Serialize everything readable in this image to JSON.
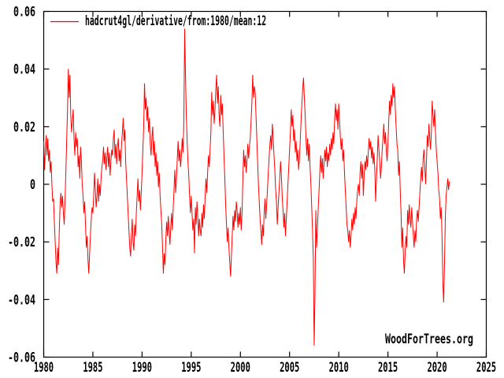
{
  "page": {
    "background": "#ffffff",
    "frame_color": "#000000"
  },
  "legend": {
    "series_label": "hadcrut4gl/derivative/from:1980/mean:12",
    "line_color": "#ff0000"
  },
  "watermark": "WoodForTrees.org",
  "chart_data": {
    "type": "line",
    "title": "",
    "xlabel": "",
    "ylabel": "",
    "grid": false,
    "legend_position": "top-left",
    "xlim": [
      1980,
      2025
    ],
    "ylim": [
      -0.06,
      0.06
    ],
    "x_ticks": {
      "values": [
        1980,
        1985,
        1990,
        1995,
        2000,
        2005,
        2010,
        2015,
        2020,
        2025
      ],
      "labels": [
        "1980",
        "1985",
        "1990",
        "1995",
        "2000",
        "2005",
        "2010",
        "2015",
        "2020",
        "2025"
      ]
    },
    "y_ticks": {
      "values": [
        0.06,
        0.04,
        0.02,
        0,
        -0.02,
        -0.04,
        -0.06
      ],
      "labels": [
        "0.06",
        "0.04",
        "0.02",
        "0",
        "-0.02",
        "-0.04",
        "-0.06"
      ]
    },
    "series": [
      {
        "name": "hadcrut4gl/derivative/from:1980/mean:12",
        "color": "#ff0000",
        "x_start": 1980.0,
        "x_step_years": 0.0833333,
        "values": [
          0.015,
          0.005,
          0.012,
          0.017,
          0.01,
          0.016,
          0.008,
          0.012,
          0.004,
          0.008,
          0.0,
          -0.006,
          -0.005,
          -0.013,
          -0.02,
          -0.027,
          -0.031,
          -0.022,
          -0.028,
          -0.016,
          -0.007,
          -0.003,
          -0.008,
          -0.004,
          -0.01,
          -0.014,
          -0.006,
          0.004,
          0.015,
          0.025,
          0.04,
          0.03,
          0.038,
          0.024,
          0.018,
          0.022,
          0.026,
          0.016,
          0.01,
          0.018,
          0.013,
          0.016,
          0.006,
          0.01,
          0.002,
          0.013,
          0.008,
          0.0,
          -0.004,
          -0.01,
          -0.006,
          -0.014,
          -0.022,
          -0.018,
          -0.026,
          -0.031,
          -0.024,
          -0.018,
          -0.012,
          -0.008,
          -0.01,
          -0.004,
          0.004,
          -0.002,
          -0.008,
          -0.004,
          0.002,
          -0.006,
          0.0,
          -0.004,
          0.002,
          0.006,
          0.008,
          0.013,
          0.007,
          0.011,
          0.005,
          0.009,
          0.013,
          0.006,
          0.011,
          0.003,
          0.008,
          0.012,
          0.01,
          0.016,
          0.019,
          0.009,
          0.014,
          0.007,
          0.013,
          0.016,
          0.008,
          0.012,
          0.006,
          0.014,
          0.018,
          0.023,
          0.015,
          0.019,
          0.008,
          0.002,
          -0.004,
          -0.01,
          -0.016,
          -0.022,
          -0.025,
          -0.018,
          -0.012,
          -0.02,
          -0.023,
          -0.014,
          -0.018,
          -0.01,
          -0.004,
          0.002,
          -0.006,
          -0.002,
          -0.009,
          -0.003,
          0.004,
          0.012,
          0.02,
          0.035,
          0.026,
          0.03,
          0.022,
          0.027,
          0.018,
          0.023,
          0.014,
          0.01,
          0.016,
          0.02,
          0.01,
          0.015,
          0.006,
          0.011,
          0.003,
          0.008,
          -0.001,
          0.004,
          -0.004,
          -0.009,
          -0.014,
          -0.022,
          -0.031,
          -0.024,
          -0.028,
          -0.019,
          -0.013,
          -0.018,
          -0.011,
          -0.016,
          -0.021,
          -0.015,
          -0.01,
          -0.016,
          -0.008,
          -0.002,
          0.005,
          -0.003,
          0.002,
          0.009,
          0.015,
          0.008,
          0.012,
          0.006,
          0.01,
          0.016,
          0.011,
          0.022,
          0.054,
          0.038,
          0.024,
          0.015,
          0.008,
          0.003,
          -0.004,
          -0.01,
          -0.004,
          -0.01,
          -0.016,
          -0.012,
          -0.024,
          -0.008,
          -0.014,
          -0.006,
          -0.011,
          -0.018,
          -0.012,
          -0.016,
          -0.018,
          -0.01,
          -0.015,
          -0.007,
          -0.012,
          -0.004,
          0.002,
          -0.003,
          0.004,
          0.01,
          0.006,
          0.012,
          0.018,
          0.032,
          0.024,
          0.029,
          0.021,
          0.026,
          0.033,
          0.038,
          0.028,
          0.034,
          0.024,
          0.02,
          0.031,
          0.024,
          0.028,
          0.018,
          0.01,
          0.002,
          -0.007,
          -0.014,
          -0.02,
          -0.015,
          -0.022,
          -0.027,
          -0.032,
          -0.025,
          -0.018,
          -0.011,
          -0.016,
          -0.009,
          -0.013,
          -0.006,
          -0.009,
          -0.015,
          -0.01,
          -0.014,
          -0.008,
          -0.016,
          -0.01,
          0.002,
          0.012,
          0.006,
          0.01,
          0.004,
          0.008,
          0.014,
          0.009,
          0.013,
          0.016,
          0.022,
          0.028,
          0.038,
          0.03,
          0.034,
          0.032,
          0.024,
          0.016,
          0.008,
          0.0,
          -0.006,
          -0.012,
          -0.016,
          -0.021,
          -0.014,
          -0.018,
          -0.01,
          -0.005,
          -0.012,
          -0.007,
          -0.002,
          0.004,
          0.009,
          0.014,
          0.017,
          0.012,
          0.021,
          0.016,
          0.01,
          0.005,
          -0.002,
          -0.006,
          -0.014,
          -0.008,
          -0.003,
          0.002,
          0.008,
          0.003,
          -0.004,
          -0.009,
          -0.015,
          -0.01,
          -0.018,
          -0.012,
          -0.006,
          0.0,
          0.006,
          0.012,
          0.018,
          0.026,
          0.02,
          0.024,
          0.015,
          0.019,
          0.011,
          0.015,
          0.008,
          0.012,
          0.005,
          0.009,
          0.015,
          0.022,
          0.028,
          0.033,
          0.037,
          0.03,
          0.024,
          0.016,
          0.01,
          0.016,
          0.008,
          0.014,
          0.006,
          0.0,
          -0.008,
          -0.016,
          -0.026,
          -0.056,
          -0.038,
          -0.009,
          -0.022,
          -0.015,
          -0.008,
          -0.002,
          0.005,
          0.01,
          0.004,
          0.009,
          0.002,
          0.007,
          0.012,
          0.008,
          0.013,
          0.006,
          0.011,
          0.008,
          0.014,
          0.01,
          0.016,
          0.012,
          0.018,
          0.014,
          0.023,
          0.028,
          0.022,
          0.026,
          0.019,
          0.028,
          0.022,
          0.016,
          0.012,
          0.016,
          0.008,
          0.012,
          0.004,
          -0.002,
          -0.008,
          -0.014,
          -0.016,
          -0.02,
          -0.016,
          -0.022,
          -0.018,
          -0.012,
          -0.016,
          -0.01,
          -0.014,
          -0.008,
          -0.012,
          -0.006,
          -0.002,
          0.0,
          -0.004,
          0.004,
          0.008,
          0.002,
          0.007,
          -0.004,
          0.003,
          0.008,
          0.005,
          0.01,
          0.006,
          0.011,
          0.016,
          0.012,
          0.015,
          0.009,
          0.013,
          0.007,
          0.011,
          0.005,
          -0.006,
          0.002,
          0.009,
          0.017,
          0.012,
          0.008,
          0.002,
          0.006,
          0.012,
          0.016,
          0.021,
          0.014,
          0.018,
          0.012,
          0.008,
          0.014,
          0.022,
          0.029,
          0.024,
          0.031,
          0.027,
          0.035,
          0.03,
          0.034,
          0.026,
          0.02,
          0.014,
          0.012,
          0.003,
          0.008,
          -0.002,
          -0.01,
          -0.022,
          -0.015,
          -0.026,
          -0.031,
          -0.024,
          -0.018,
          -0.022,
          -0.009,
          -0.014,
          -0.007,
          -0.012,
          -0.015,
          -0.008,
          -0.013,
          -0.018,
          -0.022,
          -0.016,
          -0.02,
          -0.012,
          -0.009,
          -0.013,
          -0.008,
          -0.003,
          0.002,
          0.006,
          0.001,
          0.009,
          0.012,
          0.006,
          0.0,
          0.008,
          0.017,
          0.013,
          0.021,
          0.016,
          0.012,
          0.018,
          0.029,
          0.024,
          0.02,
          0.026,
          0.018,
          0.012,
          0.008,
          0.004,
          -0.002,
          -0.005,
          -0.012,
          -0.008,
          -0.018,
          -0.034,
          -0.041,
          -0.028,
          -0.012,
          -0.004,
          -0.001,
          0.002,
          -0.002,
          0.001
        ]
      }
    ]
  }
}
